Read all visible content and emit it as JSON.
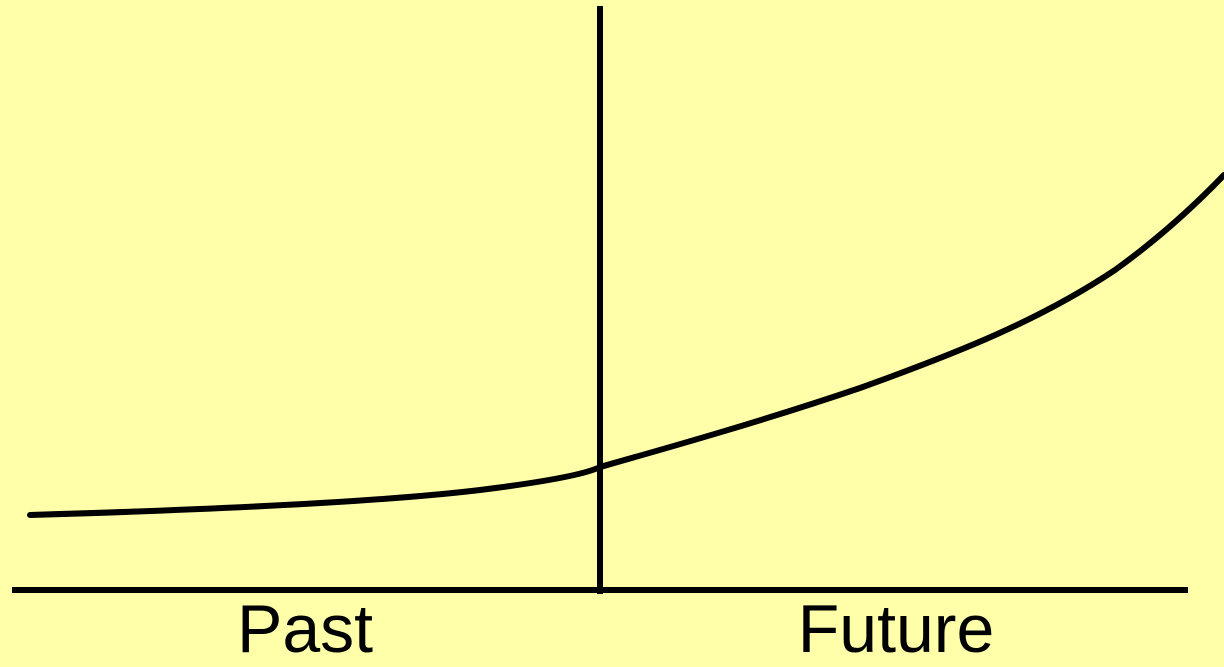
{
  "colors": {
    "background": "#FFFFAA",
    "ink": "#000000"
  },
  "labels": {
    "past": "Past",
    "future": "Future"
  }
}
